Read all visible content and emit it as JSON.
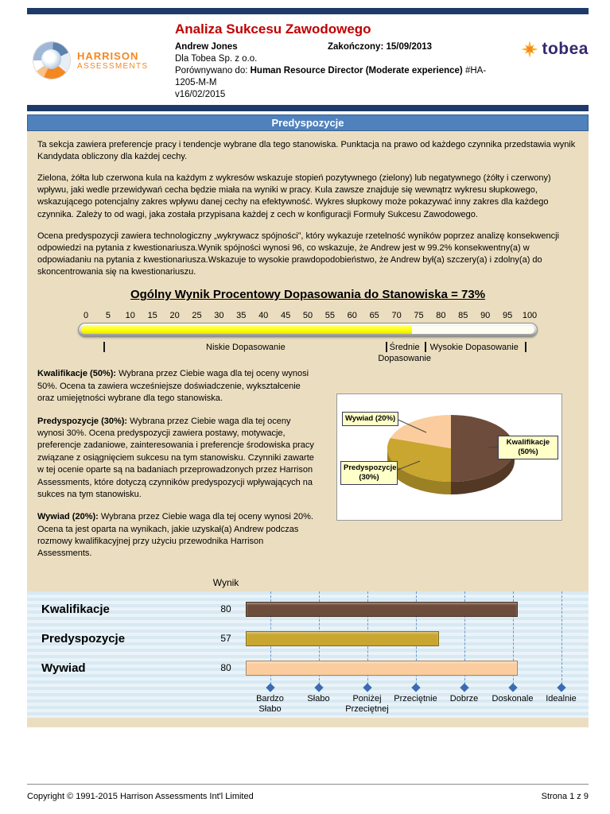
{
  "page": {
    "footer_copyright": "Copyright © 1991-2015 Harrison Assessments Int'l Limited",
    "footer_page": "Strona 1 z 9"
  },
  "header": {
    "logo_line1": "HARRISON",
    "logo_line2": "ASSESSMENTS",
    "title": "Analiza Sukcesu Zawodowego",
    "candidate": "Andrew Jones",
    "completed": "Zakończony: 15/09/2013",
    "company": "Dla Tobea Sp. z o.o.",
    "compared_prefix": "Porównywano do: ",
    "compared_bold": "Human Resource Director (Moderate experience)",
    "compared_suffix": " #HA-1205-M-M",
    "version": "v16/02/2015",
    "brand": "tobea"
  },
  "section": {
    "title": "Predyspozycje",
    "paragraphs": [
      "Ta sekcja zawiera preferencje pracy i tendencje wybrane dla tego stanowiska. Punktacja na prawo od każdego czynnika przedstawia wynik Kandydata obliczony dla każdej cechy.",
      "Zielona, żółta lub czerwona kula na każdym z wykresów wskazuje stopień pozytywnego (zielony) lub negatywnego (żółty i czerwony) wpływu, jaki wedle przewidywań cecha będzie miała na wyniki w pracy. Kula zawsze znajduje się wewnątrz wykresu słupkowego, wskazującego potencjalny zakres wpływu danej cechy na efektywność. Wykres słupkowy może pokazywać inny zakres dla każdego czynnika. Zależy to od wagi, jaka została przypisana każdej z cech w konfiguracji Formuły Sukcesu Zawodowego.",
      "Ocena predyspozycji zawiera technologiczny „wykrywacz spójności”, który wykazuje rzetelność wyników poprzez analizę konsekwencji odpowiedzi na pytania z kwestionariusza.Wynik spójności wynosi 96, co wskazuje, że Andrew jest w 99.2% konsekwentny(a) w odpowiadaniu na pytania z kwestionariusza.Wskazuje to wysokie prawdopodobieństwo, że Andrew był(a) szczery(a) i zdolny(a) do skoncentrowania się na kwestionariuszu."
    ]
  },
  "match": {
    "heading": "Ogólny Wynik Procentowy Dopasowania do Stanowiska = 73%",
    "value_pct": 73,
    "ticks": [
      "0",
      "5",
      "10",
      "15",
      "20",
      "25",
      "30",
      "35",
      "40",
      "45",
      "50",
      "55",
      "60",
      "65",
      "70",
      "75",
      "80",
      "85",
      "90",
      "95",
      "100"
    ],
    "zone_low": "Niskie Dopasowanie",
    "zone_mid_line1": "Średnie",
    "zone_mid_line2": "Dopasowanie",
    "zone_high": "Wysokie Dopasowanie"
  },
  "weights": [
    {
      "title": "Kwalifikacje (50%):",
      "text": "Wybrana przez Ciebie waga dla tej oceny wynosi 50%. Ocena ta zawiera wcześniejsze doświadczenie, wykształcenie oraz umiejętności wybrane dla tego stanowiska."
    },
    {
      "title": "Predyspozycje (30%):",
      "text": "Wybrana przez Ciebie waga dla tej oceny wynosi 30%. Ocena predyspozycji zawiera postawy, motywacje, preferencje zadaniowe, zainteresowania i preferencje środowiska pracy związane z osiągnięciem sukcesu na tym stanowisku. Czynniki zawarte w tej ocenie oparte są na badaniach przeprowadzonych przez Harrison Assessments, które dotyczą czynników predyspozycji wpływających na sukces na tym stanowisku."
    },
    {
      "title": "Wywiad (20%):",
      "text": "Wybrana przez Ciebie waga dla tej oceny wynosi 20%. Ocena ta jest oparta na wynikach, jakie uzyskał(a) Andrew podczas rozmowy kwalifikacyjnej przy użyciu przewodnika Harrison Assessments."
    }
  ],
  "pie": {
    "wywiad": "Wywiad (20%)",
    "kwalifikacje": "Kwalifikacje (50%)",
    "predyspozycje": "Predyspozycje (30%)"
  },
  "bar_section": {
    "header": "Wynik",
    "rows": [
      {
        "label": "Kwalifikacje",
        "value": "80"
      },
      {
        "label": "Predyspozycje",
        "value": "57"
      },
      {
        "label": "Wywiad",
        "value": "80"
      }
    ],
    "axis": [
      {
        "line1": "Bardzo",
        "line2": "Słabo"
      },
      {
        "line1": "Słabo",
        "line2": ""
      },
      {
        "line1": "Poniżej",
        "line2": "Przeciętnej"
      },
      {
        "line1": "Przeciętnie",
        "line2": ""
      },
      {
        "line1": "Dobrze",
        "line2": ""
      },
      {
        "line1": "Doskonale",
        "line2": ""
      },
      {
        "line1": "Idealnie",
        "line2": ""
      }
    ]
  },
  "chart_data": [
    {
      "type": "gauge",
      "title": "Ogólny Wynik Procentowy Dopasowania do Stanowiska",
      "value": 73,
      "range": [
        0,
        100
      ],
      "tick_step": 5,
      "zones": [
        "Niskie Dopasowanie",
        "Średnie Dopasowanie",
        "Wysokie Dopasowanie"
      ],
      "fill_color": "#ffff00"
    },
    {
      "type": "pie",
      "labels": [
        "Kwalifikacje",
        "Predyspozycje",
        "Wywiad"
      ],
      "values": [
        50,
        30,
        20
      ],
      "colors": [
        "#6e4c3b",
        "#c9a62f",
        "#fbcd9e"
      ]
    },
    {
      "type": "bar",
      "orientation": "horizontal",
      "title": "Wynik",
      "categories": [
        "Kwalifikacje",
        "Predyspozycje",
        "Wywiad"
      ],
      "values": [
        80,
        57,
        80
      ],
      "colors": [
        "#6e4c3b",
        "#c9a62f",
        "#fbcd9e"
      ],
      "xlim": [
        0,
        100
      ],
      "x_axis_labels": [
        "Bardzo Słabo",
        "Słabo",
        "Poniżej Przeciętnej",
        "Przeciętnie",
        "Dobrze",
        "Doskonale",
        "Idealnie"
      ],
      "grid": true,
      "marker_color": "#3a6cb4"
    }
  ]
}
